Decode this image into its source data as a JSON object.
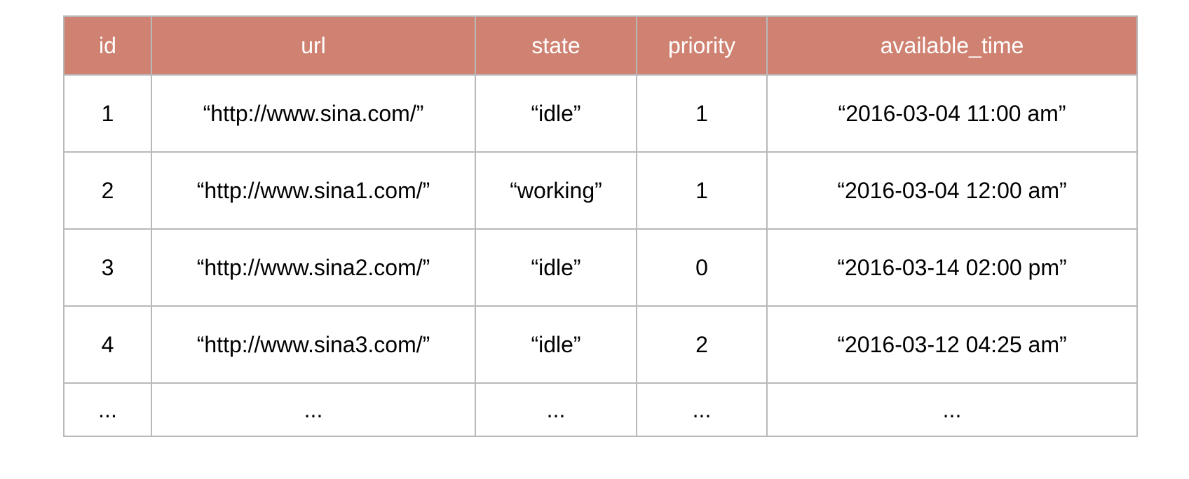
{
  "table": {
    "columns": [
      "id",
      "url",
      "state",
      "priority",
      "available_time"
    ],
    "rows": [
      [
        "1",
        "“http://www.sina.com/”",
        "“idle”",
        "1",
        "“2016-03-04 11:00 am”"
      ],
      [
        "2",
        "“http://www.sina1.com/”",
        "“working”",
        "1",
        "“2016-03-04 12:00 am”"
      ],
      [
        "3",
        "“http://www.sina2.com/”",
        "“idle”",
        "0",
        "“2016-03-14 02:00 pm”"
      ],
      [
        "4",
        "“http://www.sina3.com/”",
        "“idle”",
        "2",
        "“2016-03-12 04:25 am”"
      ],
      [
        "...",
        "...",
        "...",
        "...",
        "..."
      ]
    ]
  },
  "colors": {
    "header_background": "#d08272",
    "header_text": "#ffffff",
    "grid_line": "#b9b9b9",
    "cell_text": "#000000"
  }
}
